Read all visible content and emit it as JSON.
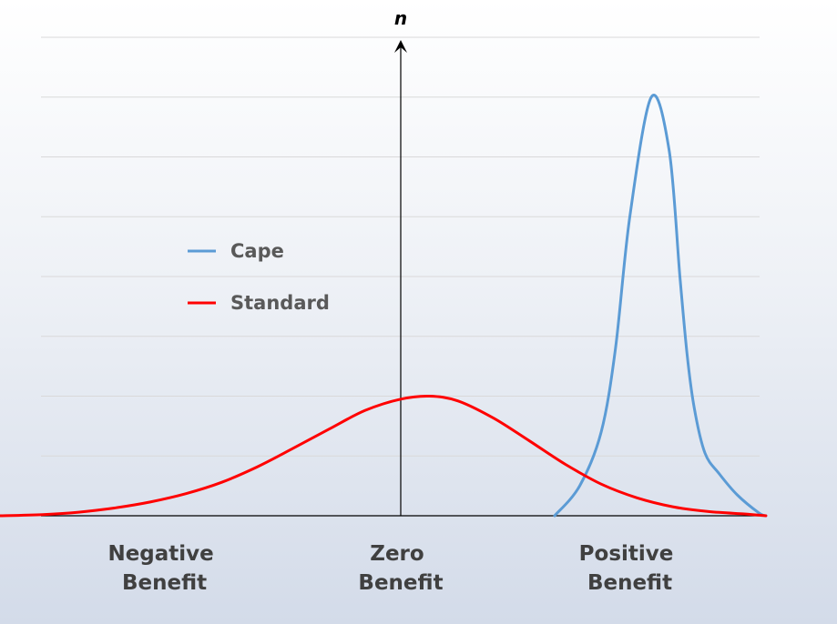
{
  "chart_data": {
    "type": "line",
    "ylabel": "n",
    "ylim": [
      0,
      8
    ],
    "xlim": [
      -6,
      6
    ],
    "grid": true,
    "legend_position": "center-left",
    "categories": [
      {
        "x": -3.3,
        "lines": [
          "Negative",
          "Benefit"
        ]
      },
      {
        "x": 0,
        "lines": [
          "Zero",
          "Benefit"
        ]
      },
      {
        "x": 3.2,
        "lines": [
          "Positive",
          "Benefit"
        ]
      }
    ],
    "series": [
      {
        "name": "Cape",
        "color": "#5b9bd5",
        "x": [
          2.15,
          2.5,
          2.8,
          3.0,
          3.2,
          3.5,
          3.75,
          3.9,
          4.0,
          4.1,
          4.25,
          4.45,
          4.7,
          5.0,
          5.1
        ],
        "y": [
          0.0,
          0.5,
          1.4,
          2.8,
          5.0,
          7.0,
          6.1,
          4.0,
          2.7,
          1.8,
          1.05,
          0.7,
          0.35,
          0.05,
          0.0
        ]
      },
      {
        "name": "Standard",
        "color": "#ff0000",
        "x": [
          -5.6,
          -5.0,
          -4.5,
          -4.0,
          -3.5,
          -3.0,
          -2.5,
          -2.0,
          -1.5,
          -1.0,
          -0.5,
          0.0,
          0.4,
          0.8,
          1.3,
          1.8,
          2.3,
          2.8,
          3.3,
          3.8,
          4.3,
          4.8,
          5.1
        ],
        "y": [
          0.0,
          0.02,
          0.06,
          0.13,
          0.23,
          0.37,
          0.56,
          0.82,
          1.13,
          1.45,
          1.76,
          1.95,
          2.0,
          1.92,
          1.63,
          1.25,
          0.86,
          0.53,
          0.3,
          0.15,
          0.07,
          0.03,
          0.0
        ]
      }
    ]
  }
}
